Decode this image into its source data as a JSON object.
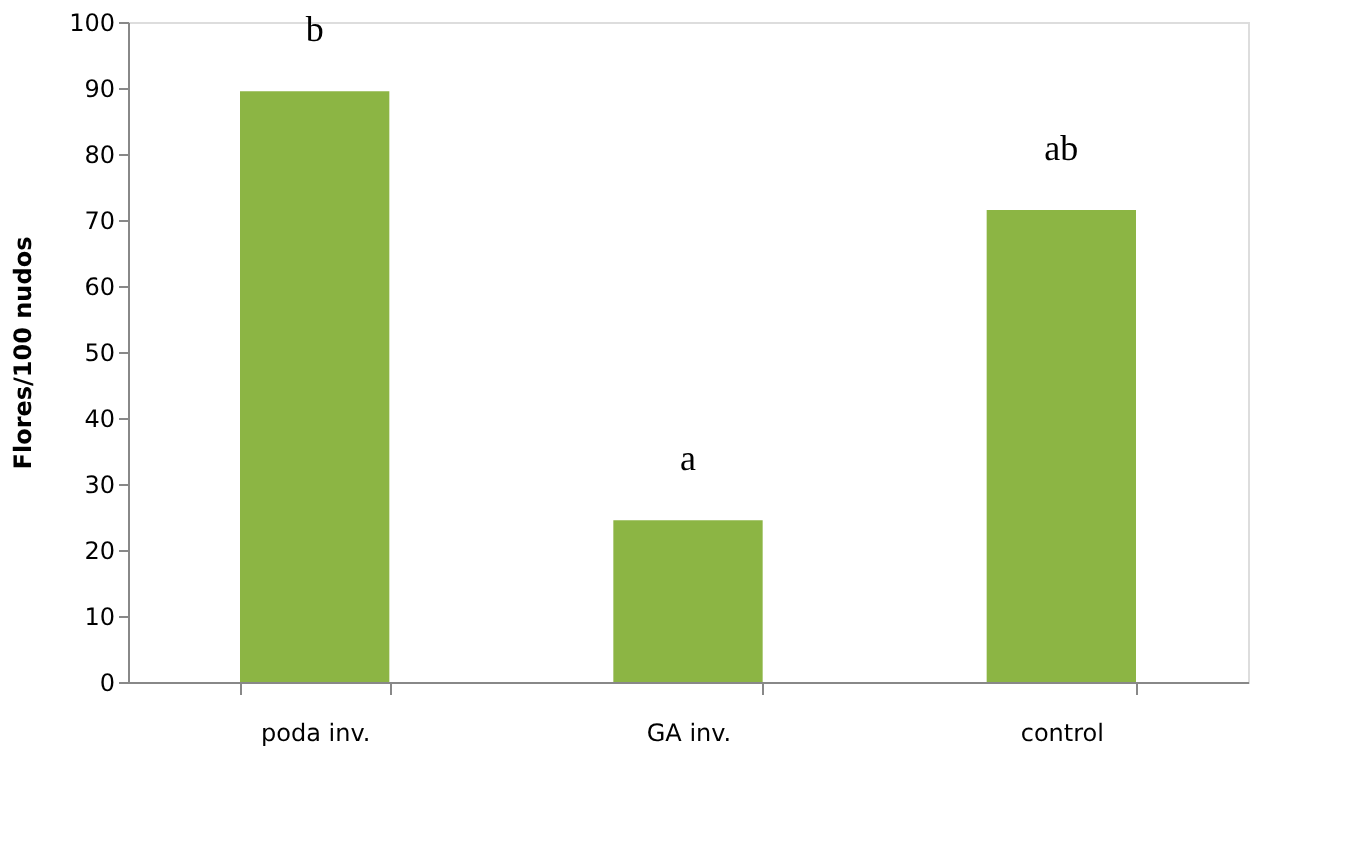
{
  "chart_data": {
    "type": "bar",
    "ylabel": "Flores/100 nudos",
    "categories": [
      "poda inv.",
      "GA inv.",
      "control"
    ],
    "values": [
      89.5,
      24.5,
      71.5
    ],
    "color": "#8cb544",
    "ylim": [
      0,
      100
    ],
    "yticks": [
      0,
      10,
      20,
      30,
      40,
      50,
      60,
      70,
      80,
      90,
      100
    ],
    "grid": false,
    "annotations": [
      "b",
      "a",
      "ab"
    ]
  }
}
